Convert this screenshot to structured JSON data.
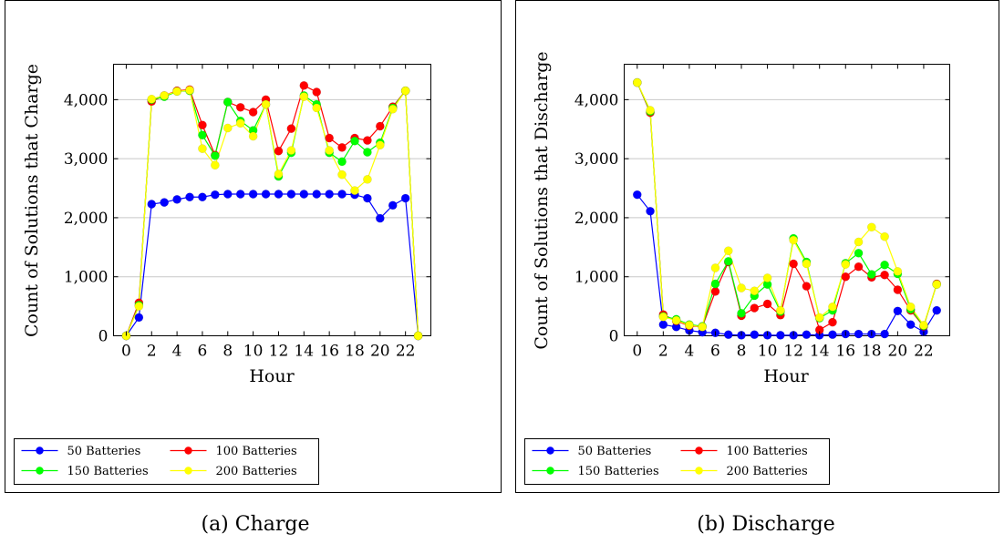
{
  "chart_data": [
    {
      "type": "line",
      "caption": "(a) Charge",
      "xlabel": "Hour",
      "ylabel": "Count of Solutions that Charge",
      "xlim": [
        -1,
        24
      ],
      "ylim": [
        0,
        4600
      ],
      "x_ticks": [
        0,
        2,
        4,
        6,
        8,
        10,
        12,
        14,
        16,
        18,
        20,
        22
      ],
      "y_ticks": [
        0,
        1000,
        2000,
        3000,
        4000
      ],
      "y_tick_labels": [
        "0",
        "1,000",
        "2,000",
        "3,000",
        "4,000"
      ],
      "grid": "horizontal",
      "legend_position": "bottom",
      "x": [
        0,
        1,
        2,
        3,
        4,
        5,
        6,
        7,
        8,
        9,
        10,
        11,
        12,
        13,
        14,
        15,
        16,
        17,
        18,
        19,
        20,
        21,
        22,
        23
      ],
      "series": [
        {
          "name": "50 Batteries",
          "color": "#0000ff",
          "values": [
            0,
            310,
            2230,
            2260,
            2310,
            2350,
            2350,
            2390,
            2400,
            2400,
            2400,
            2400,
            2400,
            2400,
            2400,
            2400,
            2400,
            2400,
            2390,
            2330,
            1990,
            2210,
            2330,
            0
          ]
        },
        {
          "name": "100 Batteries",
          "color": "#ff0000",
          "values": [
            0,
            560,
            3970,
            4070,
            4150,
            4170,
            3570,
            3060,
            3960,
            3870,
            3790,
            4000,
            3130,
            3510,
            4240,
            4130,
            3350,
            3190,
            3350,
            3310,
            3550,
            3880,
            4150,
            0
          ]
        },
        {
          "name": "150 Batteries",
          "color": "#00ff00",
          "values": [
            0,
            520,
            4000,
            4050,
            4140,
            4150,
            3400,
            3050,
            3960,
            3640,
            3480,
            3920,
            2700,
            3100,
            4070,
            3920,
            3100,
            2950,
            3300,
            3110,
            3270,
            3860,
            4150,
            0
          ]
        },
        {
          "name": "200 Batteries",
          "color": "#ffff00",
          "values": [
            0,
            500,
            4010,
            4070,
            4140,
            4160,
            3170,
            2890,
            3520,
            3600,
            3380,
            3920,
            2740,
            3140,
            4050,
            3860,
            3140,
            2730,
            2460,
            2650,
            3230,
            3840,
            4150,
            0
          ]
        }
      ]
    },
    {
      "type": "line",
      "caption": "(b) Discharge",
      "xlabel": "Hour",
      "ylabel": "Count of Solutions that Discharge",
      "xlim": [
        -1,
        24
      ],
      "ylim": [
        0,
        4600
      ],
      "x_ticks": [
        0,
        2,
        4,
        6,
        8,
        10,
        12,
        14,
        16,
        18,
        20,
        22
      ],
      "y_ticks": [
        0,
        1000,
        2000,
        3000,
        4000
      ],
      "y_tick_labels": [
        "0",
        "1,000",
        "2,000",
        "3,000",
        "4,000"
      ],
      "grid": "horizontal",
      "legend_position": "bottom",
      "x": [
        0,
        1,
        2,
        3,
        4,
        5,
        6,
        7,
        8,
        9,
        10,
        11,
        12,
        13,
        14,
        15,
        16,
        17,
        18,
        19,
        20,
        21,
        22,
        23
      ],
      "series": [
        {
          "name": "50 Batteries",
          "color": "#0000ff",
          "values": [
            2390,
            2110,
            190,
            150,
            90,
            60,
            50,
            20,
            10,
            20,
            10,
            10,
            10,
            20,
            10,
            20,
            30,
            30,
            30,
            30,
            420,
            190,
            70,
            430
          ]
        },
        {
          "name": "100 Batteries",
          "color": "#ff0000",
          "values": [
            4290,
            3780,
            360,
            250,
            170,
            150,
            750,
            1250,
            340,
            470,
            540,
            350,
            1220,
            840,
            100,
            230,
            1000,
            1170,
            990,
            1030,
            780,
            430,
            160,
            880
          ]
        },
        {
          "name": "150 Batteries",
          "color": "#00ff00",
          "values": [
            4290,
            3800,
            330,
            280,
            190,
            160,
            880,
            1260,
            380,
            680,
            870,
            410,
            1650,
            1250,
            300,
            430,
            1230,
            1400,
            1040,
            1200,
            1050,
            450,
            170,
            870
          ]
        },
        {
          "name": "200 Batteries",
          "color": "#ffff00",
          "values": [
            4290,
            3820,
            320,
            260,
            180,
            150,
            1150,
            1440,
            810,
            760,
            980,
            430,
            1620,
            1220,
            310,
            490,
            1210,
            1590,
            1840,
            1680,
            1090,
            490,
            180,
            870
          ]
        }
      ]
    }
  ]
}
